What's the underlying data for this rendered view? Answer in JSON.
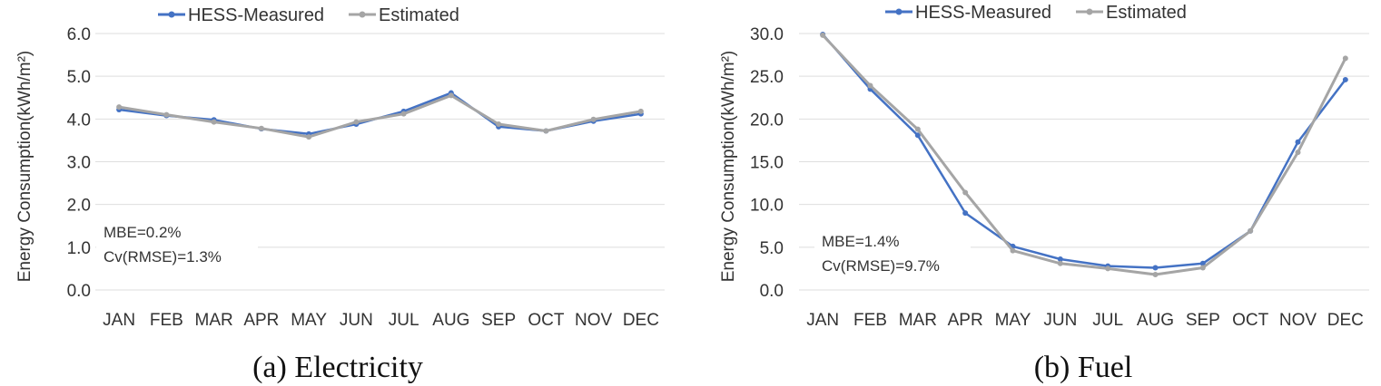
{
  "colors": {
    "measured": "#4472c4",
    "estimated": "#a5a5a5",
    "grid": "#dedede",
    "text": "#333333"
  },
  "chart_data": [
    {
      "type": "line",
      "caption": "(a) Electricity",
      "ylabel": "Energy Consumption(kWh/m²)",
      "xlabel": "",
      "ylim": [
        0,
        6
      ],
      "yticks": [
        "0.0",
        "1.0",
        "2.0",
        "3.0",
        "4.0",
        "5.0",
        "6.0"
      ],
      "grid": true,
      "legend": "top",
      "categories": [
        "JAN",
        "FEB",
        "MAR",
        "APR",
        "MAY",
        "JUN",
        "JUL",
        "AUG",
        "SEP",
        "OCT",
        "NOV",
        "DEC"
      ],
      "series": [
        {
          "name": "HESS-Measured",
          "values": [
            4.22,
            4.08,
            3.98,
            3.77,
            3.65,
            3.88,
            4.18,
            4.61,
            3.82,
            3.72,
            3.95,
            4.12
          ]
        },
        {
          "name": "Estimated",
          "values": [
            4.28,
            4.1,
            3.93,
            3.78,
            3.58,
            3.93,
            4.12,
            4.55,
            3.88,
            3.72,
            3.99,
            4.18
          ]
        }
      ],
      "annotations": [
        "MBE=0.2%",
        "Cv(RMSE)=1.3%"
      ]
    },
    {
      "type": "line",
      "caption": "(b) Fuel",
      "ylabel": "Energy Consumption(kWh/m²)",
      "xlabel": "",
      "ylim": [
        0,
        30
      ],
      "yticks": [
        "0.0",
        "5.0",
        "10.0",
        "15.0",
        "20.0",
        "25.0",
        "30.0"
      ],
      "grid": true,
      "legend": "top",
      "categories": [
        "JAN",
        "FEB",
        "MAR",
        "APR",
        "MAY",
        "JUN",
        "JUL",
        "AUG",
        "SEP",
        "OCT",
        "NOV",
        "DEC"
      ],
      "series": [
        {
          "name": "HESS-Measured",
          "values": [
            29.9,
            23.5,
            18.1,
            9.0,
            5.1,
            3.6,
            2.8,
            2.6,
            3.1,
            6.9,
            17.3,
            24.6
          ]
        },
        {
          "name": "Estimated",
          "values": [
            29.8,
            23.9,
            18.8,
            11.4,
            4.6,
            3.1,
            2.5,
            1.8,
            2.6,
            6.9,
            16.1,
            27.1
          ]
        }
      ],
      "annotations": [
        "MBE=1.4%",
        "Cv(RMSE)=9.7%"
      ]
    }
  ]
}
